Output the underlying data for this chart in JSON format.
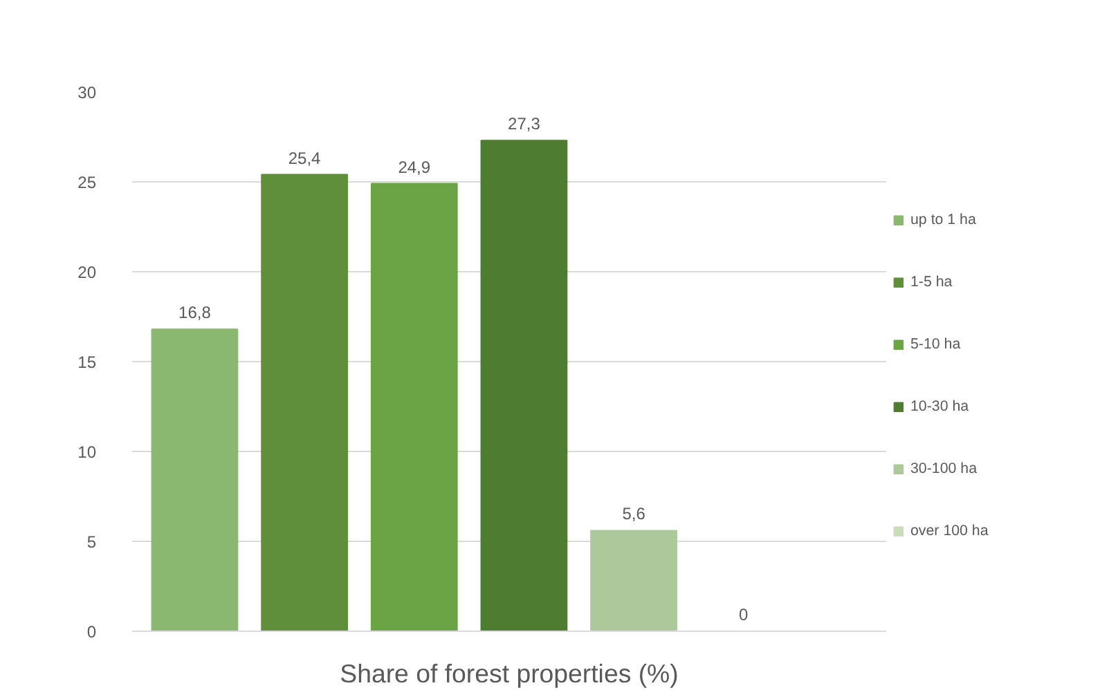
{
  "chart_data": {
    "type": "bar",
    "xlabel": "Share of forest properties (%)",
    "categories": [
      null
    ],
    "series": [
      {
        "name": "up to 1 ha",
        "color": "#8bb870",
        "values": [
          16.8
        ],
        "value_labels": [
          "16,8"
        ]
      },
      {
        "name": "1-5 ha",
        "color": "#5f8f3a",
        "values": [
          25.4
        ],
        "value_labels": [
          "25,4"
        ]
      },
      {
        "name": "5-10 ha",
        "color": "#6aa444",
        "values": [
          24.9
        ],
        "value_labels": [
          "24,9"
        ]
      },
      {
        "name": "10-30 ha",
        "color": "#4e7d32",
        "values": [
          27.3
        ],
        "value_labels": [
          "27,3"
        ]
      },
      {
        "name": "30-100 ha",
        "color": "#adc99b",
        "values": [
          5.6
        ],
        "value_labels": [
          "5,6"
        ]
      },
      {
        "name": "over 100 ha",
        "color": "#c9dcbc",
        "values": [
          0
        ],
        "value_labels": [
          "0"
        ]
      }
    ],
    "ylim": [
      0,
      30
    ],
    "yticks": [
      0,
      5,
      10,
      15,
      20,
      25,
      30
    ],
    "grid": "y",
    "legend": "right"
  }
}
